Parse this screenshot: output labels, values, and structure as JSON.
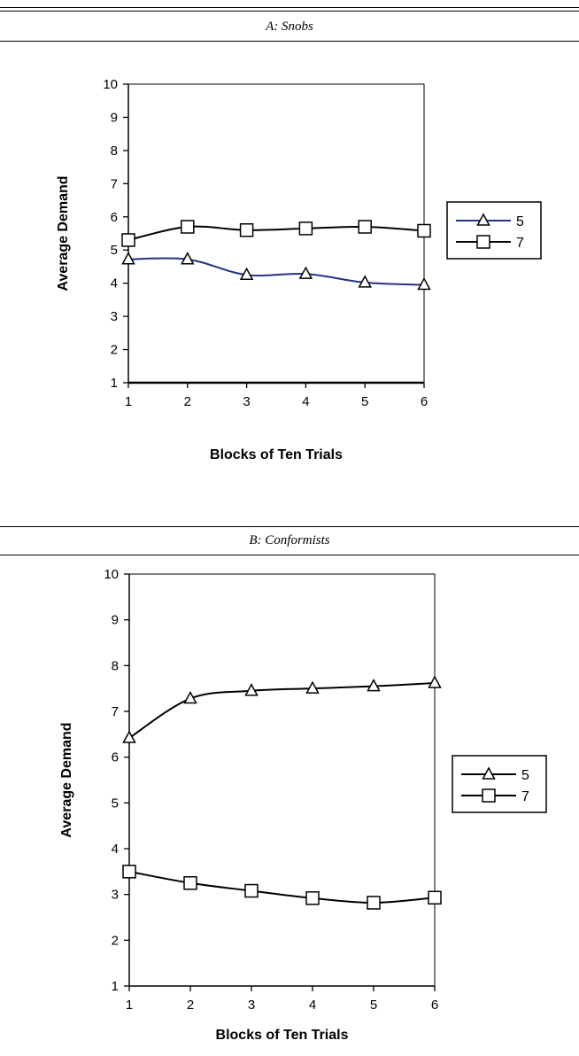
{
  "panels": [
    {
      "id": "A",
      "title": "A: Snobs"
    },
    {
      "id": "B",
      "title": "B: Conformists"
    }
  ],
  "chart_data": [
    {
      "type": "line",
      "title": "A: Snobs",
      "xlabel": "Blocks of Ten Trials",
      "ylabel": "Average Demand",
      "x": [
        1,
        2,
        3,
        4,
        5,
        6
      ],
      "xlim": [
        1,
        6
      ],
      "ylim": [
        1,
        10
      ],
      "yticks": [
        1,
        2,
        3,
        4,
        5,
        6,
        7,
        8,
        9,
        10
      ],
      "grid": false,
      "legend": "right",
      "series": [
        {
          "name": "5",
          "marker": "triangle",
          "color": "#22338a",
          "values": [
            4.72,
            4.72,
            4.25,
            4.28,
            4.02,
            3.95
          ]
        },
        {
          "name": "7",
          "marker": "square",
          "color": "#000000",
          "values": [
            5.3,
            5.7,
            5.6,
            5.65,
            5.7,
            5.58
          ]
        }
      ]
    },
    {
      "type": "line",
      "title": "B: Conformists",
      "xlabel": "Blocks of Ten Trials",
      "ylabel": "Average Demand",
      "x": [
        1,
        2,
        3,
        4,
        5,
        6
      ],
      "xlim": [
        1,
        6
      ],
      "ylim": [
        1,
        10
      ],
      "yticks": [
        1,
        2,
        3,
        4,
        5,
        6,
        7,
        8,
        9,
        10
      ],
      "grid": false,
      "legend": "right",
      "series": [
        {
          "name": "5",
          "marker": "triangle",
          "color": "#000000",
          "values": [
            6.42,
            7.28,
            7.45,
            7.5,
            7.55,
            7.62
          ]
        },
        {
          "name": "7",
          "marker": "square",
          "color": "#000000",
          "values": [
            3.5,
            3.25,
            3.08,
            2.92,
            2.82,
            2.93
          ]
        }
      ]
    }
  ]
}
